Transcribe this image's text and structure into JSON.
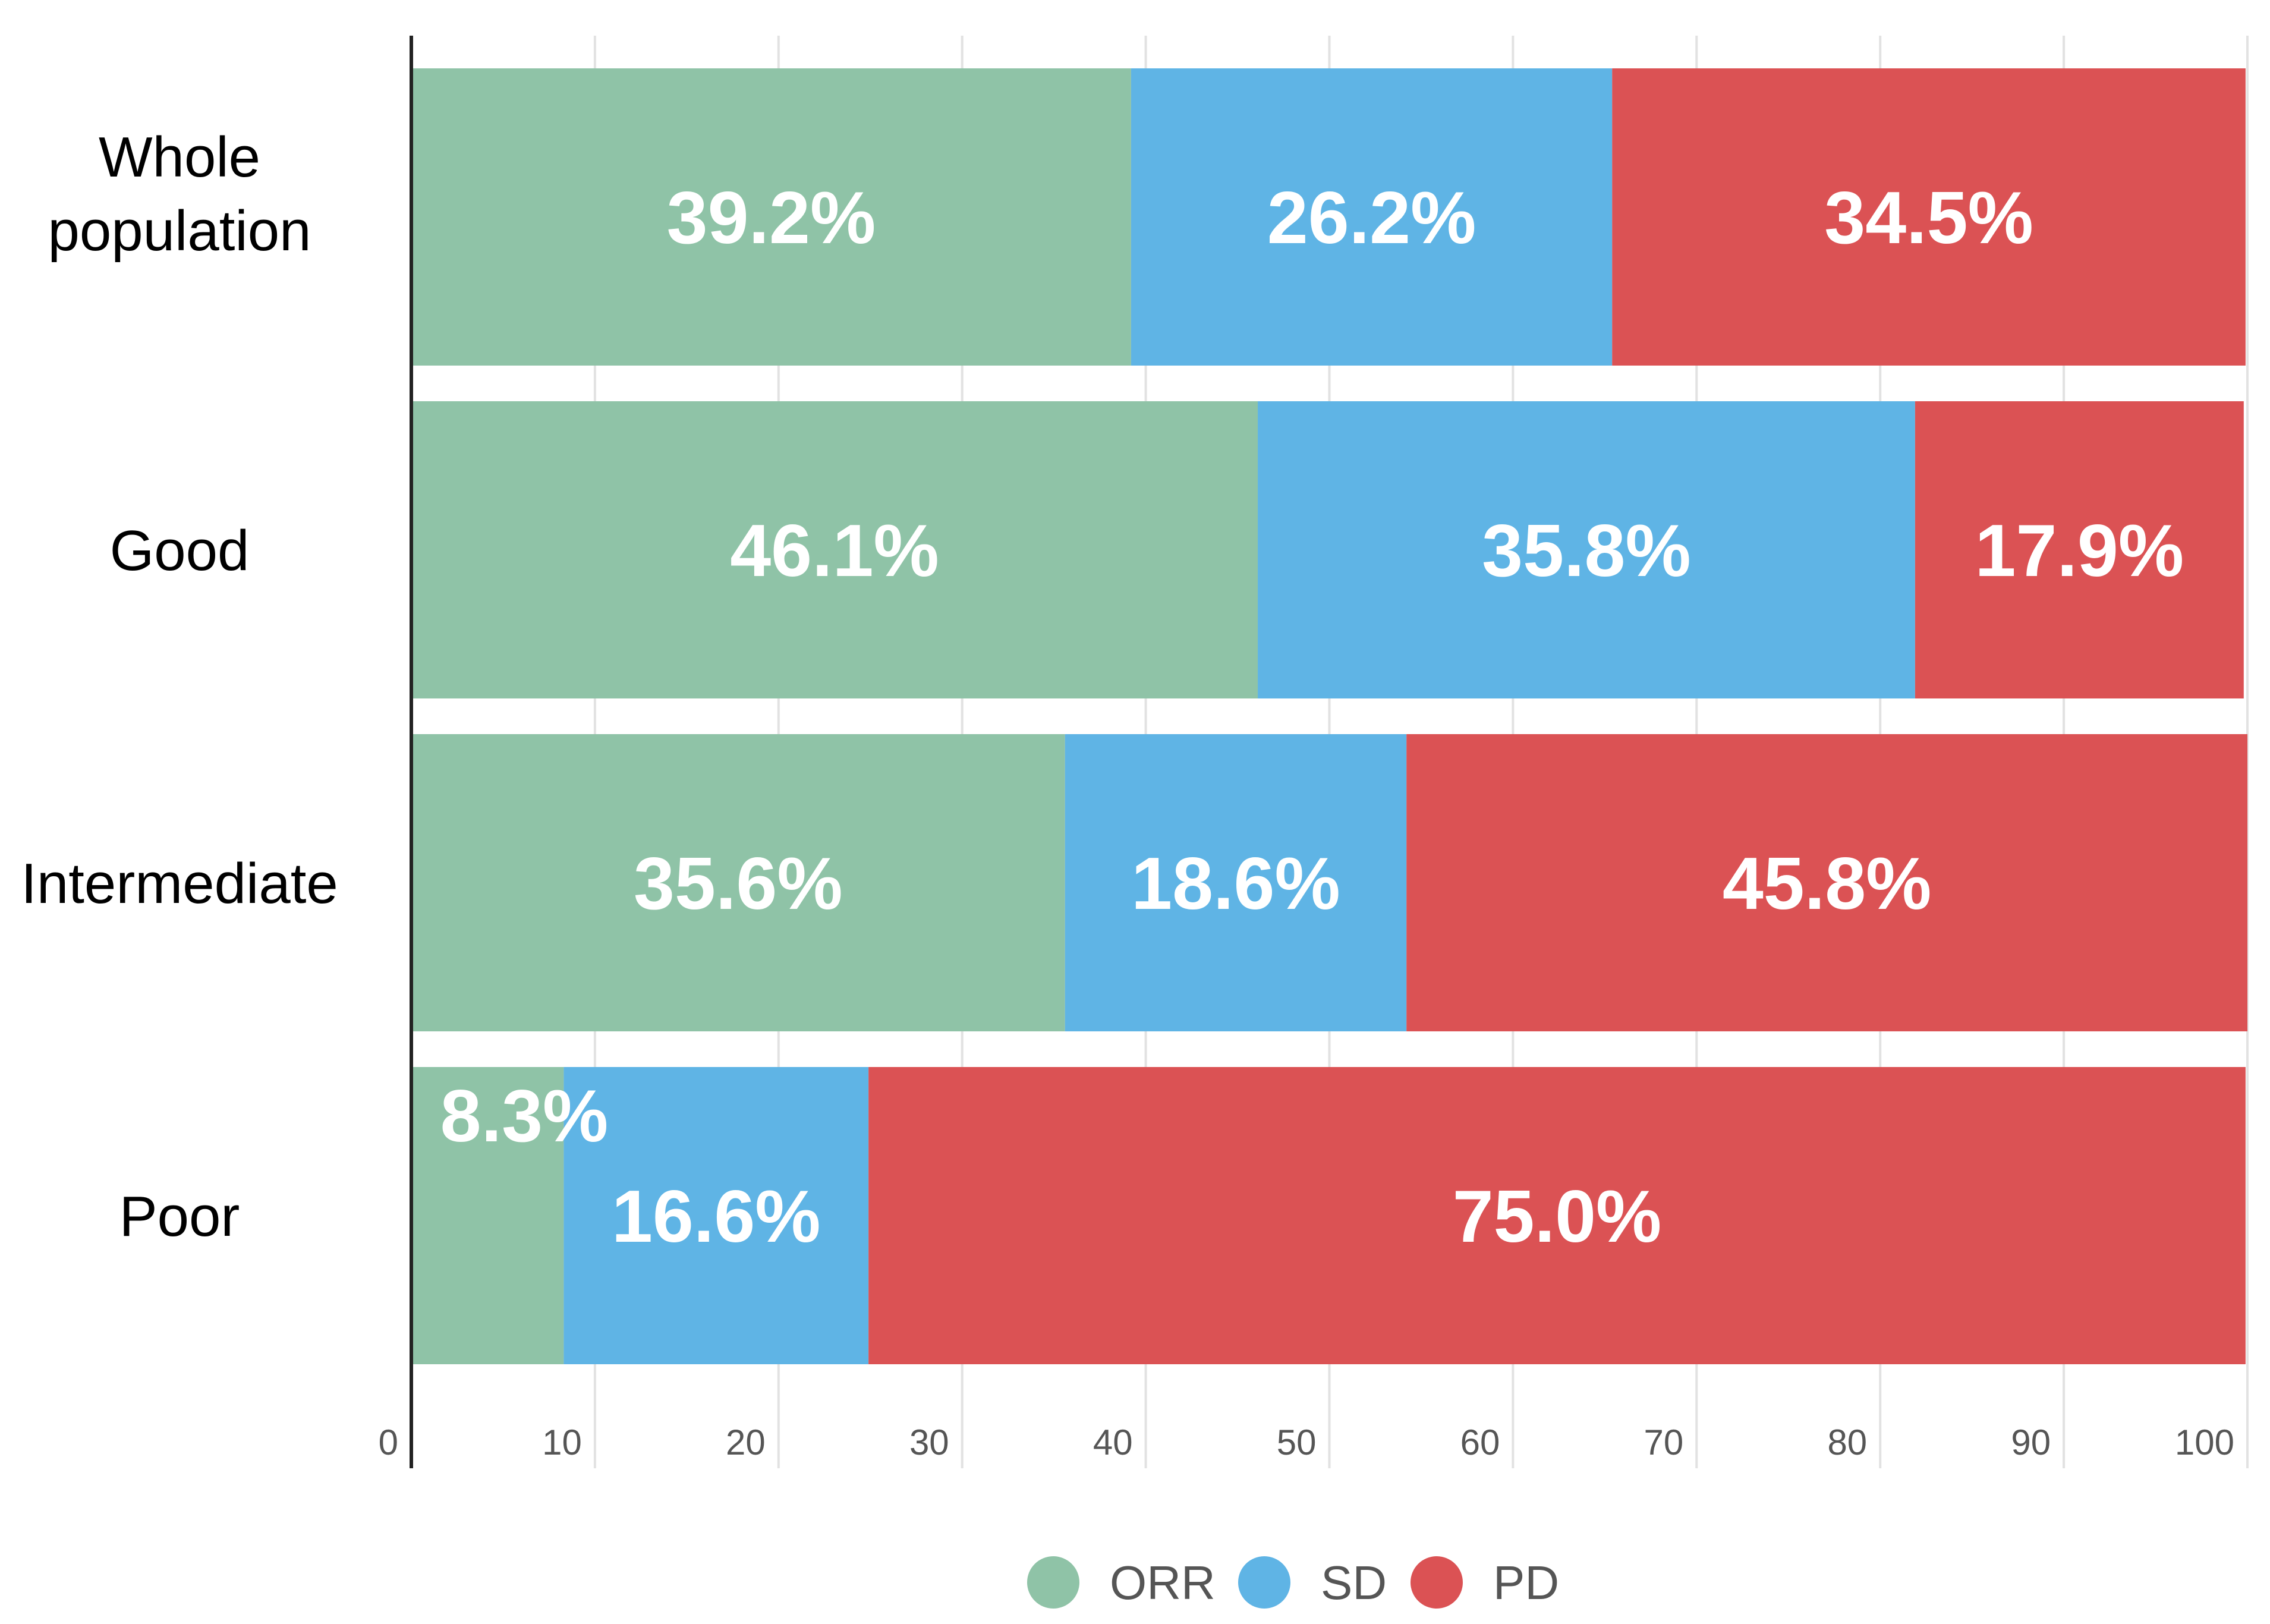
{
  "chart_data": {
    "type": "bar",
    "orientation": "horizontal",
    "stacked": true,
    "categories": [
      "Whole\npopulation",
      "Good",
      "Intermediate",
      "Poor"
    ],
    "series": [
      {
        "name": "ORR",
        "color": "#8fc3a7",
        "values": [
          39.2,
          46.1,
          35.6,
          8.3
        ],
        "labels": [
          "39.2%",
          "46.1%",
          "35.6%",
          "8.3%"
        ]
      },
      {
        "name": "SD",
        "color": "#5fb4e5",
        "values": [
          26.2,
          35.8,
          18.6,
          16.6
        ],
        "labels": [
          "26.2%",
          "35.8%",
          "18.6%",
          "16.6%"
        ]
      },
      {
        "name": "PD",
        "color": "#db5254",
        "values": [
          34.5,
          17.9,
          45.8,
          75.0
        ],
        "labels": [
          "34.5%",
          "17.9%",
          "45.8%",
          "75.0%"
        ]
      }
    ],
    "xlim": [
      0,
      100
    ],
    "xticks": [
      "0",
      "10",
      "20",
      "30",
      "40",
      "50",
      "60",
      "70",
      "80",
      "90",
      "100"
    ],
    "grid": true,
    "legend": "bottom-center",
    "title": "",
    "xlabel": "",
    "ylabel": ""
  }
}
